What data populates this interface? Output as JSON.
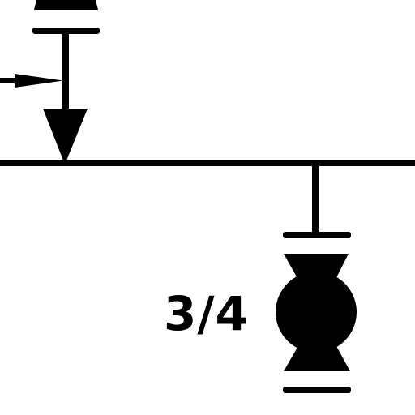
{
  "diagram": {
    "valve_size_label": "3/4",
    "stroke_color": "#000000",
    "background_color": "#ffffff",
    "icons": {
      "top_valve": "valve-icon",
      "flow_arrow": "flow-arrow-icon",
      "junction_arrow": "downward-arrow-icon",
      "main_line": "pipe-line",
      "bottom_valve": "valve-icon"
    }
  }
}
